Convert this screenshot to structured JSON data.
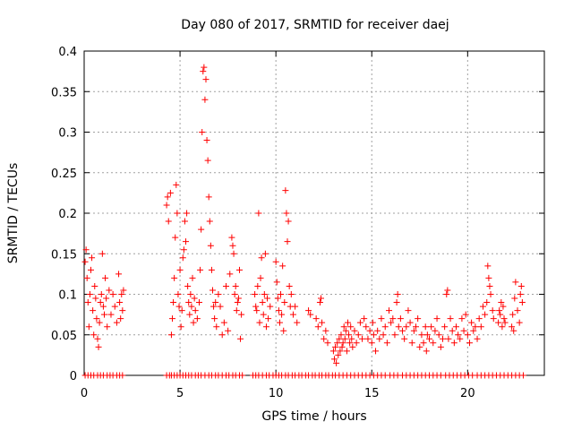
{
  "chart_data": {
    "type": "scatter",
    "title": "Day 080 of 2017, SRMTID for receiver daej",
    "xlabel": "GPS time / hours",
    "ylabel": "SRMTID / TECUs",
    "xlim": [
      0,
      24
    ],
    "ylim": [
      0,
      0.4
    ],
    "xticks": [
      0,
      5,
      10,
      15,
      20
    ],
    "xtick_labels": [
      "0",
      "5",
      "10",
      "15",
      "20"
    ],
    "yticks": [
      0,
      0.05,
      0.1,
      0.15,
      0.2,
      0.25,
      0.3,
      0.35,
      0.4
    ],
    "ytick_labels": [
      "0",
      "0.05",
      "0.1",
      "0.15",
      "0.2",
      "0.25",
      "0.3",
      "0.35",
      "0.4"
    ],
    "grid": true,
    "marker": "+",
    "color": "#ff0000",
    "series": [
      {
        "name": "SRMTID",
        "points": [
          [
            0.05,
            0.14
          ],
          [
            0.1,
            0.155
          ],
          [
            0.15,
            0.12
          ],
          [
            0.2,
            0.09
          ],
          [
            0.25,
            0.06
          ],
          [
            0.3,
            0.1
          ],
          [
            0.35,
            0.13
          ],
          [
            0.4,
            0.145
          ],
          [
            0.45,
            0.08
          ],
          [
            0.5,
            0.05
          ],
          [
            0.55,
            0.11
          ],
          [
            0.6,
            0.095
          ],
          [
            0.65,
            0.07
          ],
          [
            0.7,
            0.045
          ],
          [
            0.75,
            0.035
          ],
          [
            0.8,
            0.065
          ],
          [
            0.85,
            0.09
          ],
          [
            0.9,
            0.1
          ],
          [
            0.95,
            0.15
          ],
          [
            1.0,
            0.085
          ],
          [
            1.05,
            0.075
          ],
          [
            1.1,
            0.12
          ],
          [
            1.15,
            0.095
          ],
          [
            1.2,
            0.06
          ],
          [
            1.3,
            0.105
          ],
          [
            1.4,
            0.075
          ],
          [
            1.5,
            0.1
          ],
          [
            1.6,
            0.085
          ],
          [
            1.7,
            0.065
          ],
          [
            1.8,
            0.125
          ],
          [
            1.85,
            0.09
          ],
          [
            1.9,
            0.07
          ],
          [
            1.95,
            0.1
          ],
          [
            2.0,
            0.08
          ],
          [
            2.05,
            0.105
          ],
          [
            4.3,
            0.21
          ],
          [
            4.35,
            0.22
          ],
          [
            4.4,
            0.19
          ],
          [
            4.5,
            0.225
          ],
          [
            4.55,
            0.05
          ],
          [
            4.6,
            0.07
          ],
          [
            4.65,
            0.09
          ],
          [
            4.7,
            0.12
          ],
          [
            4.75,
            0.17
          ],
          [
            4.8,
            0.235
          ],
          [
            4.85,
            0.2
          ],
          [
            4.9,
            0.1
          ],
          [
            4.95,
            0.085
          ],
          [
            5.0,
            0.13
          ],
          [
            5.05,
            0.06
          ],
          [
            5.1,
            0.08
          ],
          [
            5.15,
            0.145
          ],
          [
            5.2,
            0.155
          ],
          [
            5.25,
            0.19
          ],
          [
            5.3,
            0.165
          ],
          [
            5.35,
            0.2
          ],
          [
            5.4,
            0.11
          ],
          [
            5.45,
            0.09
          ],
          [
            5.5,
            0.075
          ],
          [
            5.55,
            0.1
          ],
          [
            5.6,
            0.085
          ],
          [
            5.65,
            0.12
          ],
          [
            5.7,
            0.065
          ],
          [
            5.75,
            0.095
          ],
          [
            5.8,
            0.08
          ],
          [
            5.9,
            0.07
          ],
          [
            6.0,
            0.09
          ],
          [
            6.05,
            0.13
          ],
          [
            6.1,
            0.18
          ],
          [
            6.15,
            0.3
          ],
          [
            6.2,
            0.375
          ],
          [
            6.25,
            0.38
          ],
          [
            6.3,
            0.34
          ],
          [
            6.35,
            0.365
          ],
          [
            6.4,
            0.29
          ],
          [
            6.45,
            0.265
          ],
          [
            6.5,
            0.22
          ],
          [
            6.55,
            0.19
          ],
          [
            6.6,
            0.16
          ],
          [
            6.65,
            0.13
          ],
          [
            6.7,
            0.105
          ],
          [
            6.75,
            0.085
          ],
          [
            6.8,
            0.07
          ],
          [
            6.85,
            0.09
          ],
          [
            6.9,
            0.06
          ],
          [
            7.0,
            0.1
          ],
          [
            7.1,
            0.085
          ],
          [
            7.2,
            0.05
          ],
          [
            7.3,
            0.065
          ],
          [
            7.4,
            0.11
          ],
          [
            7.5,
            0.055
          ],
          [
            7.6,
            0.125
          ],
          [
            7.7,
            0.17
          ],
          [
            7.75,
            0.16
          ],
          [
            7.8,
            0.15
          ],
          [
            7.85,
            0.1
          ],
          [
            7.9,
            0.11
          ],
          [
            7.95,
            0.08
          ],
          [
            8.0,
            0.09
          ],
          [
            8.05,
            0.095
          ],
          [
            8.1,
            0.13
          ],
          [
            8.15,
            0.045
          ],
          [
            8.2,
            0.075
          ],
          [
            8.9,
            0.1
          ],
          [
            8.95,
            0.085
          ],
          [
            9.0,
            0.08
          ],
          [
            9.05,
            0.11
          ],
          [
            9.1,
            0.2
          ],
          [
            9.15,
            0.065
          ],
          [
            9.2,
            0.12
          ],
          [
            9.25,
            0.145
          ],
          [
            9.3,
            0.09
          ],
          [
            9.35,
            0.075
          ],
          [
            9.4,
            0.1
          ],
          [
            9.45,
            0.15
          ],
          [
            9.5,
            0.06
          ],
          [
            9.55,
            0.095
          ],
          [
            9.6,
            0.07
          ],
          [
            9.7,
            0.085
          ],
          [
            10.0,
            0.14
          ],
          [
            10.05,
            0.115
          ],
          [
            10.1,
            0.095
          ],
          [
            10.15,
            0.08
          ],
          [
            10.2,
            0.065
          ],
          [
            10.25,
            0.1
          ],
          [
            10.3,
            0.075
          ],
          [
            10.35,
            0.135
          ],
          [
            10.4,
            0.055
          ],
          [
            10.45,
            0.09
          ],
          [
            10.5,
            0.228
          ],
          [
            10.55,
            0.2
          ],
          [
            10.6,
            0.165
          ],
          [
            10.65,
            0.19
          ],
          [
            10.7,
            0.11
          ],
          [
            10.75,
            0.085
          ],
          [
            10.8,
            0.1
          ],
          [
            10.9,
            0.075
          ],
          [
            11.0,
            0.085
          ],
          [
            11.1,
            0.065
          ],
          [
            11.7,
            0.08
          ],
          [
            11.8,
            0.075
          ],
          [
            12.1,
            0.07
          ],
          [
            12.2,
            0.06
          ],
          [
            12.3,
            0.09
          ],
          [
            12.35,
            0.095
          ],
          [
            12.4,
            0.065
          ],
          [
            12.5,
            0.045
          ],
          [
            12.6,
            0.055
          ],
          [
            12.7,
            0.04
          ],
          [
            13.0,
            0.03
          ],
          [
            13.05,
            0.02
          ],
          [
            13.1,
            0.035
          ],
          [
            13.15,
            0.015
          ],
          [
            13.2,
            0.04
          ],
          [
            13.25,
            0.025
          ],
          [
            13.3,
            0.045
          ],
          [
            13.35,
            0.03
          ],
          [
            13.4,
            0.05
          ],
          [
            13.45,
            0.035
          ],
          [
            13.5,
            0.04
          ],
          [
            13.55,
            0.06
          ],
          [
            13.6,
            0.045
          ],
          [
            13.65,
            0.055
          ],
          [
            13.7,
            0.03
          ],
          [
            13.75,
            0.065
          ],
          [
            13.8,
            0.05
          ],
          [
            13.85,
            0.04
          ],
          [
            13.9,
            0.06
          ],
          [
            13.95,
            0.045
          ],
          [
            14.0,
            0.035
          ],
          [
            14.1,
            0.055
          ],
          [
            14.2,
            0.04
          ],
          [
            14.3,
            0.05
          ],
          [
            14.4,
            0.065
          ],
          [
            14.5,
            0.045
          ],
          [
            14.6,
            0.07
          ],
          [
            14.7,
            0.06
          ],
          [
            14.8,
            0.045
          ],
          [
            14.9,
            0.055
          ],
          [
            15.0,
            0.04
          ],
          [
            15.05,
            0.065
          ],
          [
            15.1,
            0.05
          ],
          [
            15.2,
            0.03
          ],
          [
            15.3,
            0.055
          ],
          [
            15.4,
            0.045
          ],
          [
            15.5,
            0.07
          ],
          [
            15.6,
            0.05
          ],
          [
            15.7,
            0.06
          ],
          [
            15.8,
            0.04
          ],
          [
            15.9,
            0.08
          ],
          [
            16.0,
            0.065
          ],
          [
            16.1,
            0.07
          ],
          [
            16.2,
            0.05
          ],
          [
            16.3,
            0.09
          ],
          [
            16.35,
            0.1
          ],
          [
            16.4,
            0.06
          ],
          [
            16.5,
            0.07
          ],
          [
            16.6,
            0.055
          ],
          [
            16.7,
            0.045
          ],
          [
            16.8,
            0.06
          ],
          [
            16.9,
            0.08
          ],
          [
            17.0,
            0.065
          ],
          [
            17.1,
            0.04
          ],
          [
            17.2,
            0.055
          ],
          [
            17.3,
            0.06
          ],
          [
            17.4,
            0.07
          ],
          [
            17.5,
            0.035
          ],
          [
            17.6,
            0.05
          ],
          [
            17.7,
            0.04
          ],
          [
            17.8,
            0.06
          ],
          [
            17.85,
            0.03
          ],
          [
            17.9,
            0.05
          ],
          [
            18.0,
            0.045
          ],
          [
            18.1,
            0.06
          ],
          [
            18.2,
            0.04
          ],
          [
            18.3,
            0.055
          ],
          [
            18.4,
            0.07
          ],
          [
            18.5,
            0.05
          ],
          [
            18.6,
            0.035
          ],
          [
            18.7,
            0.045
          ],
          [
            18.8,
            0.06
          ],
          [
            18.9,
            0.1
          ],
          [
            18.95,
            0.105
          ],
          [
            19.0,
            0.045
          ],
          [
            19.1,
            0.07
          ],
          [
            19.2,
            0.055
          ],
          [
            19.3,
            0.04
          ],
          [
            19.4,
            0.06
          ],
          [
            19.5,
            0.05
          ],
          [
            19.6,
            0.045
          ],
          [
            19.7,
            0.07
          ],
          [
            19.8,
            0.055
          ],
          [
            19.9,
            0.075
          ],
          [
            20.0,
            0.05
          ],
          [
            20.1,
            0.04
          ],
          [
            20.2,
            0.065
          ],
          [
            20.3,
            0.055
          ],
          [
            20.4,
            0.06
          ],
          [
            20.5,
            0.045
          ],
          [
            20.6,
            0.07
          ],
          [
            20.7,
            0.06
          ],
          [
            20.8,
            0.085
          ],
          [
            20.9,
            0.075
          ],
          [
            21.0,
            0.09
          ],
          [
            21.05,
            0.135
          ],
          [
            21.1,
            0.12
          ],
          [
            21.15,
            0.11
          ],
          [
            21.2,
            0.1
          ],
          [
            21.3,
            0.08
          ],
          [
            21.35,
            0.07
          ],
          [
            21.6,
            0.065
          ],
          [
            21.65,
            0.08
          ],
          [
            21.7,
            0.075
          ],
          [
            21.75,
            0.09
          ],
          [
            21.8,
            0.06
          ],
          [
            21.85,
            0.085
          ],
          [
            21.9,
            0.07
          ],
          [
            21.95,
            0.065
          ],
          [
            22.3,
            0.06
          ],
          [
            22.35,
            0.075
          ],
          [
            22.4,
            0.055
          ],
          [
            22.45,
            0.095
          ],
          [
            22.5,
            0.115
          ],
          [
            22.6,
            0.08
          ],
          [
            22.7,
            0.065
          ],
          [
            22.75,
            0.1
          ],
          [
            22.8,
            0.11
          ],
          [
            22.85,
            0.09
          ]
        ],
        "zero_points_x": [
          0.05,
          0.2,
          0.35,
          0.5,
          0.7,
          0.85,
          1.0,
          1.2,
          1.35,
          1.5,
          1.7,
          1.85,
          2.0,
          4.3,
          4.45,
          4.55,
          4.7,
          4.85,
          5.0,
          5.15,
          5.3,
          5.45,
          5.6,
          5.8,
          5.95,
          6.1,
          6.3,
          6.5,
          6.65,
          6.85,
          7.0,
          7.2,
          7.4,
          7.55,
          7.75,
          7.9,
          8.1,
          8.25,
          8.8,
          8.95,
          9.1,
          9.3,
          9.5,
          9.65,
          9.85,
          10.0,
          10.15,
          10.3,
          10.5,
          10.65,
          10.85,
          11.0,
          11.2,
          11.35,
          11.55,
          11.7,
          11.9,
          12.05,
          12.25,
          12.4,
          12.6,
          12.75,
          12.95,
          13.1,
          13.3,
          13.5,
          13.7,
          13.9,
          14.1,
          14.3,
          14.5,
          14.7,
          14.9,
          15.1,
          15.3,
          15.5,
          15.7,
          15.95,
          16.15,
          16.35,
          16.6,
          16.8,
          17.0,
          17.2,
          17.4,
          17.6,
          17.8,
          18.0,
          18.2,
          18.4,
          18.6,
          18.85,
          19.05,
          19.25,
          19.45,
          19.65,
          19.85,
          20.05,
          20.25,
          20.5,
          20.7,
          20.9,
          21.1,
          21.3,
          21.5,
          21.7,
          21.9,
          22.1,
          22.3,
          22.5,
          22.7,
          22.9
        ]
      }
    ]
  }
}
